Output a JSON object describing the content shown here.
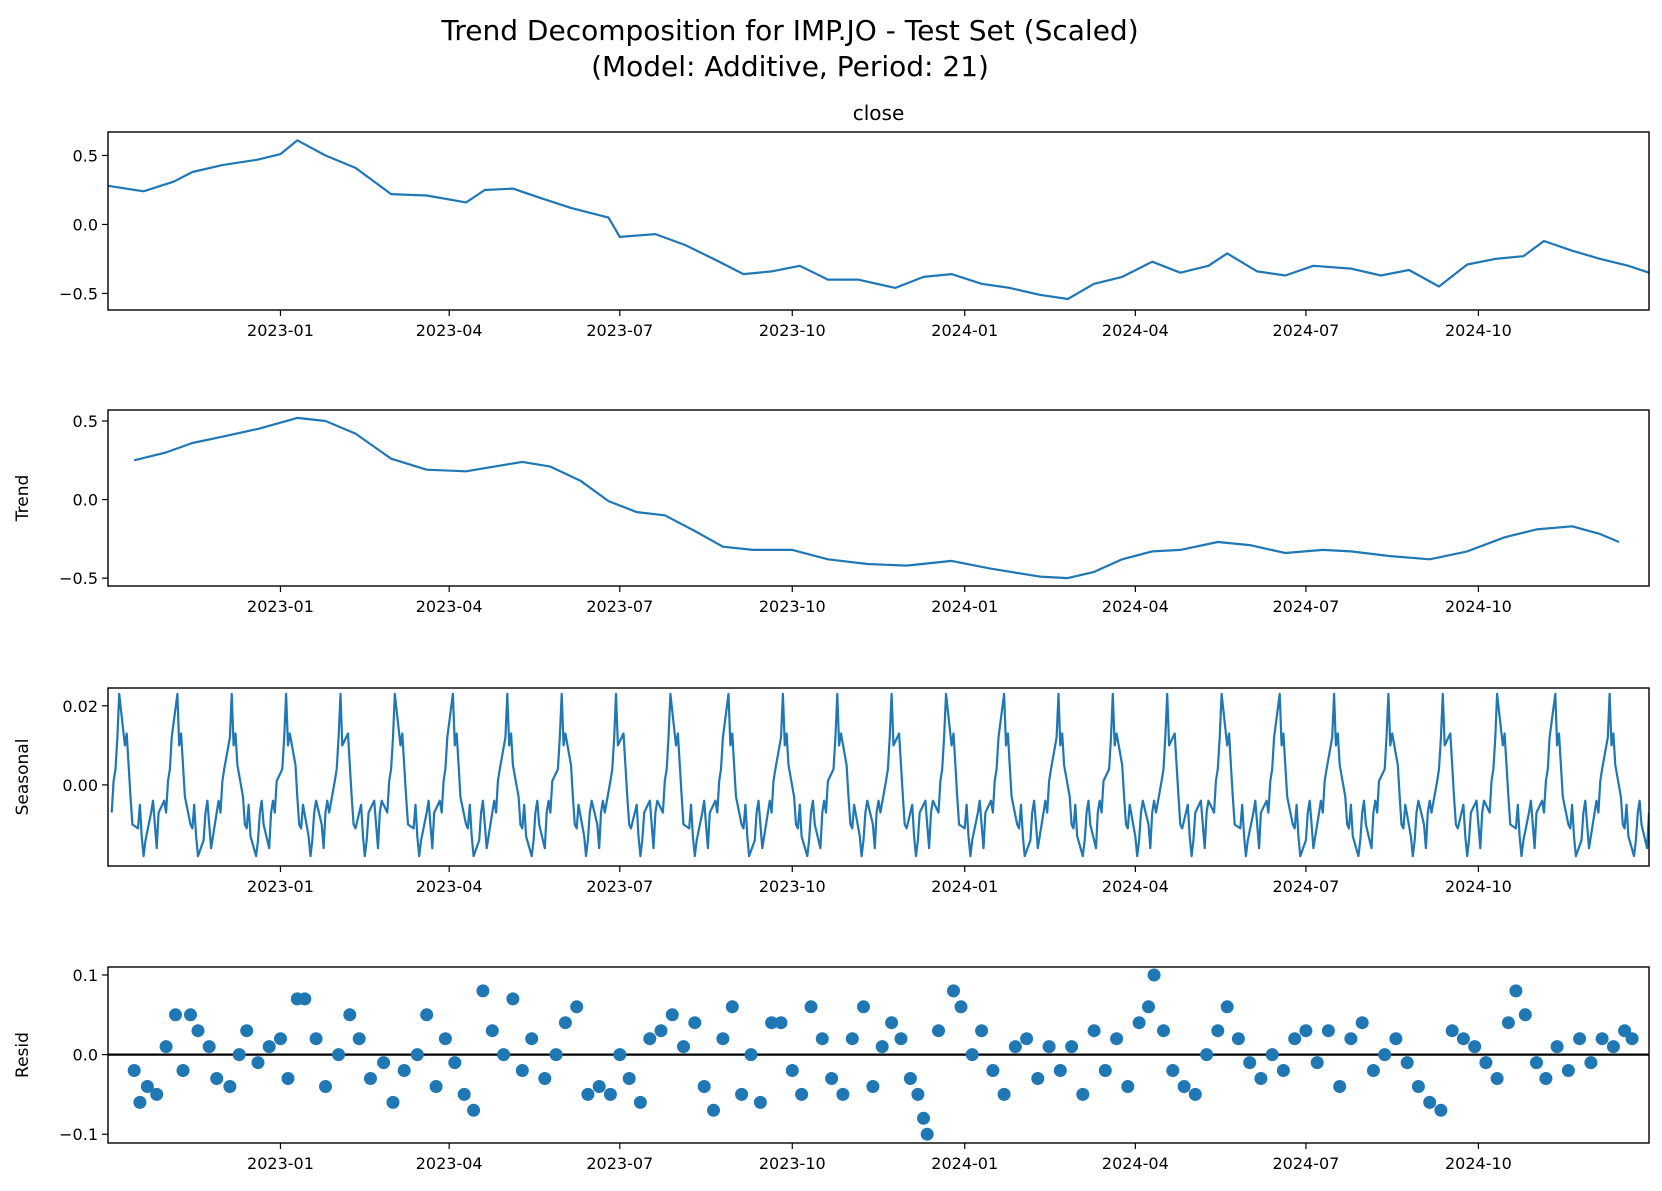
{
  "figure": {
    "title_line1": "Trend Decomposition for IMP.JO - Test Set (Scaled)",
    "title_line2": "(Model: Additive, Period: 21)"
  },
  "colors": {
    "series": "#1f77b4",
    "axes": "#000000",
    "zero_line": "#000000"
  },
  "x_axis": {
    "type": "date",
    "range": [
      "2022-10-01",
      "2024-12-31"
    ],
    "ticks": [
      "2023-01-01",
      "2023-04-01",
      "2023-07-01",
      "2023-10-01",
      "2024-01-01",
      "2024-04-01",
      "2024-07-01",
      "2024-10-01"
    ],
    "tick_labels": [
      "2023-01",
      "2023-04",
      "2023-07",
      "2023-10",
      "2024-01",
      "2024-04",
      "2024-07",
      "2024-10"
    ]
  },
  "chart_data": [
    {
      "type": "line",
      "title": "close",
      "ylabel": "",
      "ylim": [
        -0.62,
        0.67
      ],
      "yticks": [
        0.5,
        0.0,
        -0.5
      ],
      "ytick_labels": [
        "0.5",
        "0.0",
        "−0.5"
      ],
      "x_range": [
        "2022-10-01",
        "2024-12-31"
      ],
      "points": [
        [
          "2022-10-01",
          0.28
        ],
        [
          "2022-10-20",
          0.24
        ],
        [
          "2022-11-05",
          0.31
        ],
        [
          "2022-11-15",
          0.38
        ],
        [
          "2022-12-01",
          0.43
        ],
        [
          "2022-12-20",
          0.47
        ],
        [
          "2023-01-01",
          0.51
        ],
        [
          "2023-01-10",
          0.61
        ],
        [
          "2023-01-25",
          0.5
        ],
        [
          "2023-02-10",
          0.41
        ],
        [
          "2023-03-01",
          0.22
        ],
        [
          "2023-03-20",
          0.21
        ],
        [
          "2023-04-10",
          0.16
        ],
        [
          "2023-04-20",
          0.25
        ],
        [
          "2023-05-05",
          0.26
        ],
        [
          "2023-05-20",
          0.19
        ],
        [
          "2023-06-05",
          0.12
        ],
        [
          "2023-06-25",
          0.05
        ],
        [
          "2023-07-01",
          -0.09
        ],
        [
          "2023-07-20",
          -0.07
        ],
        [
          "2023-08-05",
          -0.15
        ],
        [
          "2023-08-20",
          -0.25
        ],
        [
          "2023-09-05",
          -0.36
        ],
        [
          "2023-09-20",
          -0.34
        ],
        [
          "2023-10-05",
          -0.3
        ],
        [
          "2023-10-20",
          -0.4
        ],
        [
          "2023-11-05",
          -0.4
        ],
        [
          "2023-11-25",
          -0.46
        ],
        [
          "2023-12-10",
          -0.38
        ],
        [
          "2023-12-25",
          -0.36
        ],
        [
          "2024-01-10",
          -0.43
        ],
        [
          "2024-01-25",
          -0.46
        ],
        [
          "2024-02-10",
          -0.51
        ],
        [
          "2024-02-25",
          -0.54
        ],
        [
          "2024-03-10",
          -0.43
        ],
        [
          "2024-03-25",
          -0.38
        ],
        [
          "2024-04-10",
          -0.27
        ],
        [
          "2024-04-25",
          -0.35
        ],
        [
          "2024-05-10",
          -0.3
        ],
        [
          "2024-05-20",
          -0.21
        ],
        [
          "2024-06-05",
          -0.34
        ],
        [
          "2024-06-20",
          -0.37
        ],
        [
          "2024-07-05",
          -0.3
        ],
        [
          "2024-07-25",
          -0.32
        ],
        [
          "2024-08-10",
          -0.37
        ],
        [
          "2024-08-25",
          -0.33
        ],
        [
          "2024-09-10",
          -0.45
        ],
        [
          "2024-09-25",
          -0.29
        ],
        [
          "2024-10-10",
          -0.25
        ],
        [
          "2024-10-25",
          -0.23
        ],
        [
          "2024-11-05",
          -0.12
        ],
        [
          "2024-11-20",
          -0.19
        ],
        [
          "2024-12-05",
          -0.25
        ],
        [
          "2024-12-20",
          -0.3
        ],
        [
          "2024-12-31",
          -0.35
        ]
      ]
    },
    {
      "type": "line",
      "title": "",
      "ylabel": "Trend",
      "ylim": [
        -0.55,
        0.57
      ],
      "yticks": [
        0.5,
        0.0,
        -0.5
      ],
      "ytick_labels": [
        "0.5",
        "0.0",
        "−0.5"
      ],
      "x_range": [
        "2022-10-01",
        "2024-12-31"
      ],
      "points": [
        [
          "2022-10-15",
          0.25
        ],
        [
          "2022-11-01",
          0.3
        ],
        [
          "2022-11-15",
          0.36
        ],
        [
          "2022-12-01",
          0.4
        ],
        [
          "2022-12-20",
          0.45
        ],
        [
          "2023-01-10",
          0.52
        ],
        [
          "2023-01-25",
          0.5
        ],
        [
          "2023-02-10",
          0.42
        ],
        [
          "2023-03-01",
          0.26
        ],
        [
          "2023-03-20",
          0.19
        ],
        [
          "2023-04-10",
          0.18
        ],
        [
          "2023-04-25",
          0.21
        ],
        [
          "2023-05-10",
          0.24
        ],
        [
          "2023-05-25",
          0.21
        ],
        [
          "2023-06-10",
          0.12
        ],
        [
          "2023-06-25",
          -0.01
        ],
        [
          "2023-07-10",
          -0.08
        ],
        [
          "2023-07-25",
          -0.1
        ],
        [
          "2023-08-10",
          -0.2
        ],
        [
          "2023-08-25",
          -0.3
        ],
        [
          "2023-09-10",
          -0.32
        ],
        [
          "2023-10-01",
          -0.32
        ],
        [
          "2023-10-20",
          -0.38
        ],
        [
          "2023-11-10",
          -0.41
        ],
        [
          "2023-12-01",
          -0.42
        ],
        [
          "2023-12-25",
          -0.39
        ],
        [
          "2024-01-15",
          -0.44
        ],
        [
          "2024-02-10",
          -0.49
        ],
        [
          "2024-02-25",
          -0.5
        ],
        [
          "2024-03-10",
          -0.46
        ],
        [
          "2024-03-25",
          -0.38
        ],
        [
          "2024-04-10",
          -0.33
        ],
        [
          "2024-04-25",
          -0.32
        ],
        [
          "2024-05-15",
          -0.27
        ],
        [
          "2024-06-01",
          -0.29
        ],
        [
          "2024-06-20",
          -0.34
        ],
        [
          "2024-07-10",
          -0.32
        ],
        [
          "2024-07-25",
          -0.33
        ],
        [
          "2024-08-15",
          -0.36
        ],
        [
          "2024-09-05",
          -0.38
        ],
        [
          "2024-09-25",
          -0.33
        ],
        [
          "2024-10-15",
          -0.24
        ],
        [
          "2024-11-01",
          -0.19
        ],
        [
          "2024-11-20",
          -0.17
        ],
        [
          "2024-12-05",
          -0.22
        ],
        [
          "2024-12-15",
          -0.27
        ]
      ]
    },
    {
      "type": "line",
      "title": "",
      "ylabel": "Seasonal",
      "ylim": [
        -0.0205,
        0.0245
      ],
      "yticks": [
        0.02,
        0.0
      ],
      "ytick_labels": [
        "0.02",
        "0.00"
      ],
      "x_range": [
        "2022-10-01",
        "2024-12-31"
      ],
      "period": 21,
      "start_date": "2022-10-01",
      "cycle_values": [
        -0.007,
        0.001,
        0.004,
        0.012,
        0.023,
        0.01,
        0.013,
        0.005,
        -0.003,
        -0.01,
        -0.011,
        -0.005,
        -0.013,
        -0.018,
        -0.014,
        -0.007,
        -0.004,
        -0.01,
        -0.016,
        -0.007,
        -0.004
      ]
    },
    {
      "type": "scatter",
      "title": "",
      "ylabel": "Resid",
      "ylim": [
        -0.111,
        0.11
      ],
      "yticks": [
        0.1,
        0.0,
        -0.1
      ],
      "ytick_labels": [
        "0.1",
        "0.0",
        "−0.1"
      ],
      "x_range": [
        "2022-10-01",
        "2024-12-31"
      ],
      "zero_line": true,
      "points": [
        [
          "2022-10-15",
          -0.02
        ],
        [
          "2022-10-18",
          -0.06
        ],
        [
          "2022-10-22",
          -0.04
        ],
        [
          "2022-10-27",
          -0.05
        ],
        [
          "2022-11-01",
          0.01
        ],
        [
          "2022-11-06",
          0.05
        ],
        [
          "2022-11-10",
          -0.02
        ],
        [
          "2022-11-14",
          0.05
        ],
        [
          "2022-11-18",
          0.03
        ],
        [
          "2022-11-24",
          0.01
        ],
        [
          "2022-11-28",
          -0.03
        ],
        [
          "2022-12-05",
          -0.04
        ],
        [
          "2022-12-10",
          0.0
        ],
        [
          "2022-12-14",
          0.03
        ],
        [
          "2022-12-20",
          -0.01
        ],
        [
          "2022-12-26",
          0.01
        ],
        [
          "2023-01-01",
          0.02
        ],
        [
          "2023-01-05",
          -0.03
        ],
        [
          "2023-01-10",
          0.07
        ],
        [
          "2023-01-14",
          0.07
        ],
        [
          "2023-01-20",
          0.02
        ],
        [
          "2023-01-25",
          -0.04
        ],
        [
          "2023-02-01",
          0.0
        ],
        [
          "2023-02-07",
          0.05
        ],
        [
          "2023-02-12",
          0.02
        ],
        [
          "2023-02-18",
          -0.03
        ],
        [
          "2023-02-25",
          -0.01
        ],
        [
          "2023-03-02",
          -0.06
        ],
        [
          "2023-03-08",
          -0.02
        ],
        [
          "2023-03-15",
          0.0
        ],
        [
          "2023-03-20",
          0.05
        ],
        [
          "2023-03-25",
          -0.04
        ],
        [
          "2023-03-30",
          0.02
        ],
        [
          "2023-04-04",
          -0.01
        ],
        [
          "2023-04-09",
          -0.05
        ],
        [
          "2023-04-14",
          -0.07
        ],
        [
          "2023-04-19",
          0.08
        ],
        [
          "2023-04-24",
          0.03
        ],
        [
          "2023-04-30",
          0.0
        ],
        [
          "2023-05-05",
          0.07
        ],
        [
          "2023-05-10",
          -0.02
        ],
        [
          "2023-05-15",
          0.02
        ],
        [
          "2023-05-22",
          -0.03
        ],
        [
          "2023-05-28",
          0.0
        ],
        [
          "2023-06-02",
          0.04
        ],
        [
          "2023-06-08",
          0.06
        ],
        [
          "2023-06-14",
          -0.05
        ],
        [
          "2023-06-20",
          -0.04
        ],
        [
          "2023-06-26",
          -0.05
        ],
        [
          "2023-07-01",
          0.0
        ],
        [
          "2023-07-06",
          -0.03
        ],
        [
          "2023-07-12",
          -0.06
        ],
        [
          "2023-07-17",
          0.02
        ],
        [
          "2023-07-23",
          0.03
        ],
        [
          "2023-07-29",
          0.05
        ],
        [
          "2023-08-04",
          0.01
        ],
        [
          "2023-08-10",
          0.04
        ],
        [
          "2023-08-15",
          -0.04
        ],
        [
          "2023-08-20",
          -0.07
        ],
        [
          "2023-08-25",
          0.02
        ],
        [
          "2023-08-30",
          0.06
        ],
        [
          "2023-09-04",
          -0.05
        ],
        [
          "2023-09-09",
          0.0
        ],
        [
          "2023-09-14",
          -0.06
        ],
        [
          "2023-09-20",
          0.04
        ],
        [
          "2023-09-25",
          0.04
        ],
        [
          "2023-10-01",
          -0.02
        ],
        [
          "2023-10-06",
          -0.05
        ],
        [
          "2023-10-11",
          0.06
        ],
        [
          "2023-10-17",
          0.02
        ],
        [
          "2023-10-22",
          -0.03
        ],
        [
          "2023-10-28",
          -0.05
        ],
        [
          "2023-11-02",
          0.02
        ],
        [
          "2023-11-08",
          0.06
        ],
        [
          "2023-11-13",
          -0.04
        ],
        [
          "2023-11-18",
          0.01
        ],
        [
          "2023-11-23",
          0.04
        ],
        [
          "2023-11-28",
          0.02
        ],
        [
          "2023-12-03",
          -0.03
        ],
        [
          "2023-12-07",
          -0.05
        ],
        [
          "2023-12-10",
          -0.08
        ],
        [
          "2023-12-12",
          -0.1
        ],
        [
          "2023-12-18",
          0.03
        ],
        [
          "2023-12-26",
          0.08
        ],
        [
          "2023-12-30",
          0.06
        ],
        [
          "2024-01-05",
          0.0
        ],
        [
          "2024-01-10",
          0.03
        ],
        [
          "2024-01-16",
          -0.02
        ],
        [
          "2024-01-22",
          -0.05
        ],
        [
          "2024-01-28",
          0.01
        ],
        [
          "2024-02-03",
          0.02
        ],
        [
          "2024-02-09",
          -0.03
        ],
        [
          "2024-02-15",
          0.01
        ],
        [
          "2024-02-21",
          -0.02
        ],
        [
          "2024-02-27",
          0.01
        ],
        [
          "2024-03-04",
          -0.05
        ],
        [
          "2024-03-10",
          0.03
        ],
        [
          "2024-03-16",
          -0.02
        ],
        [
          "2024-03-22",
          0.02
        ],
        [
          "2024-03-28",
          -0.04
        ],
        [
          "2024-04-03",
          0.04
        ],
        [
          "2024-04-08",
          0.06
        ],
        [
          "2024-04-11",
          0.1
        ],
        [
          "2024-04-16",
          0.03
        ],
        [
          "2024-04-21",
          -0.02
        ],
        [
          "2024-04-27",
          -0.04
        ],
        [
          "2024-05-03",
          -0.05
        ],
        [
          "2024-05-09",
          0.0
        ],
        [
          "2024-05-15",
          0.03
        ],
        [
          "2024-05-20",
          0.06
        ],
        [
          "2024-05-26",
          0.02
        ],
        [
          "2024-06-01",
          -0.01
        ],
        [
          "2024-06-07",
          -0.03
        ],
        [
          "2024-06-13",
          0.0
        ],
        [
          "2024-06-19",
          -0.02
        ],
        [
          "2024-06-25",
          0.02
        ],
        [
          "2024-07-01",
          0.03
        ],
        [
          "2024-07-07",
          -0.01
        ],
        [
          "2024-07-13",
          0.03
        ],
        [
          "2024-07-19",
          -0.04
        ],
        [
          "2024-07-25",
          0.02
        ],
        [
          "2024-07-31",
          0.04
        ],
        [
          "2024-08-06",
          -0.02
        ],
        [
          "2024-08-12",
          0.0
        ],
        [
          "2024-08-18",
          0.02
        ],
        [
          "2024-08-24",
          -0.01
        ],
        [
          "2024-08-30",
          -0.04
        ],
        [
          "2024-09-05",
          -0.06
        ],
        [
          "2024-09-11",
          -0.07
        ],
        [
          "2024-09-17",
          0.03
        ],
        [
          "2024-09-23",
          0.02
        ],
        [
          "2024-09-29",
          0.01
        ],
        [
          "2024-10-05",
          -0.01
        ],
        [
          "2024-10-11",
          -0.03
        ],
        [
          "2024-10-17",
          0.04
        ],
        [
          "2024-10-21",
          0.08
        ],
        [
          "2024-10-26",
          0.05
        ],
        [
          "2024-11-01",
          -0.01
        ],
        [
          "2024-11-06",
          -0.03
        ],
        [
          "2024-11-12",
          0.01
        ],
        [
          "2024-11-18",
          -0.02
        ],
        [
          "2024-11-24",
          0.02
        ],
        [
          "2024-11-30",
          -0.01
        ],
        [
          "2024-12-06",
          0.02
        ],
        [
          "2024-12-12",
          0.01
        ],
        [
          "2024-12-18",
          0.03
        ],
        [
          "2024-12-22",
          0.02
        ]
      ]
    }
  ]
}
